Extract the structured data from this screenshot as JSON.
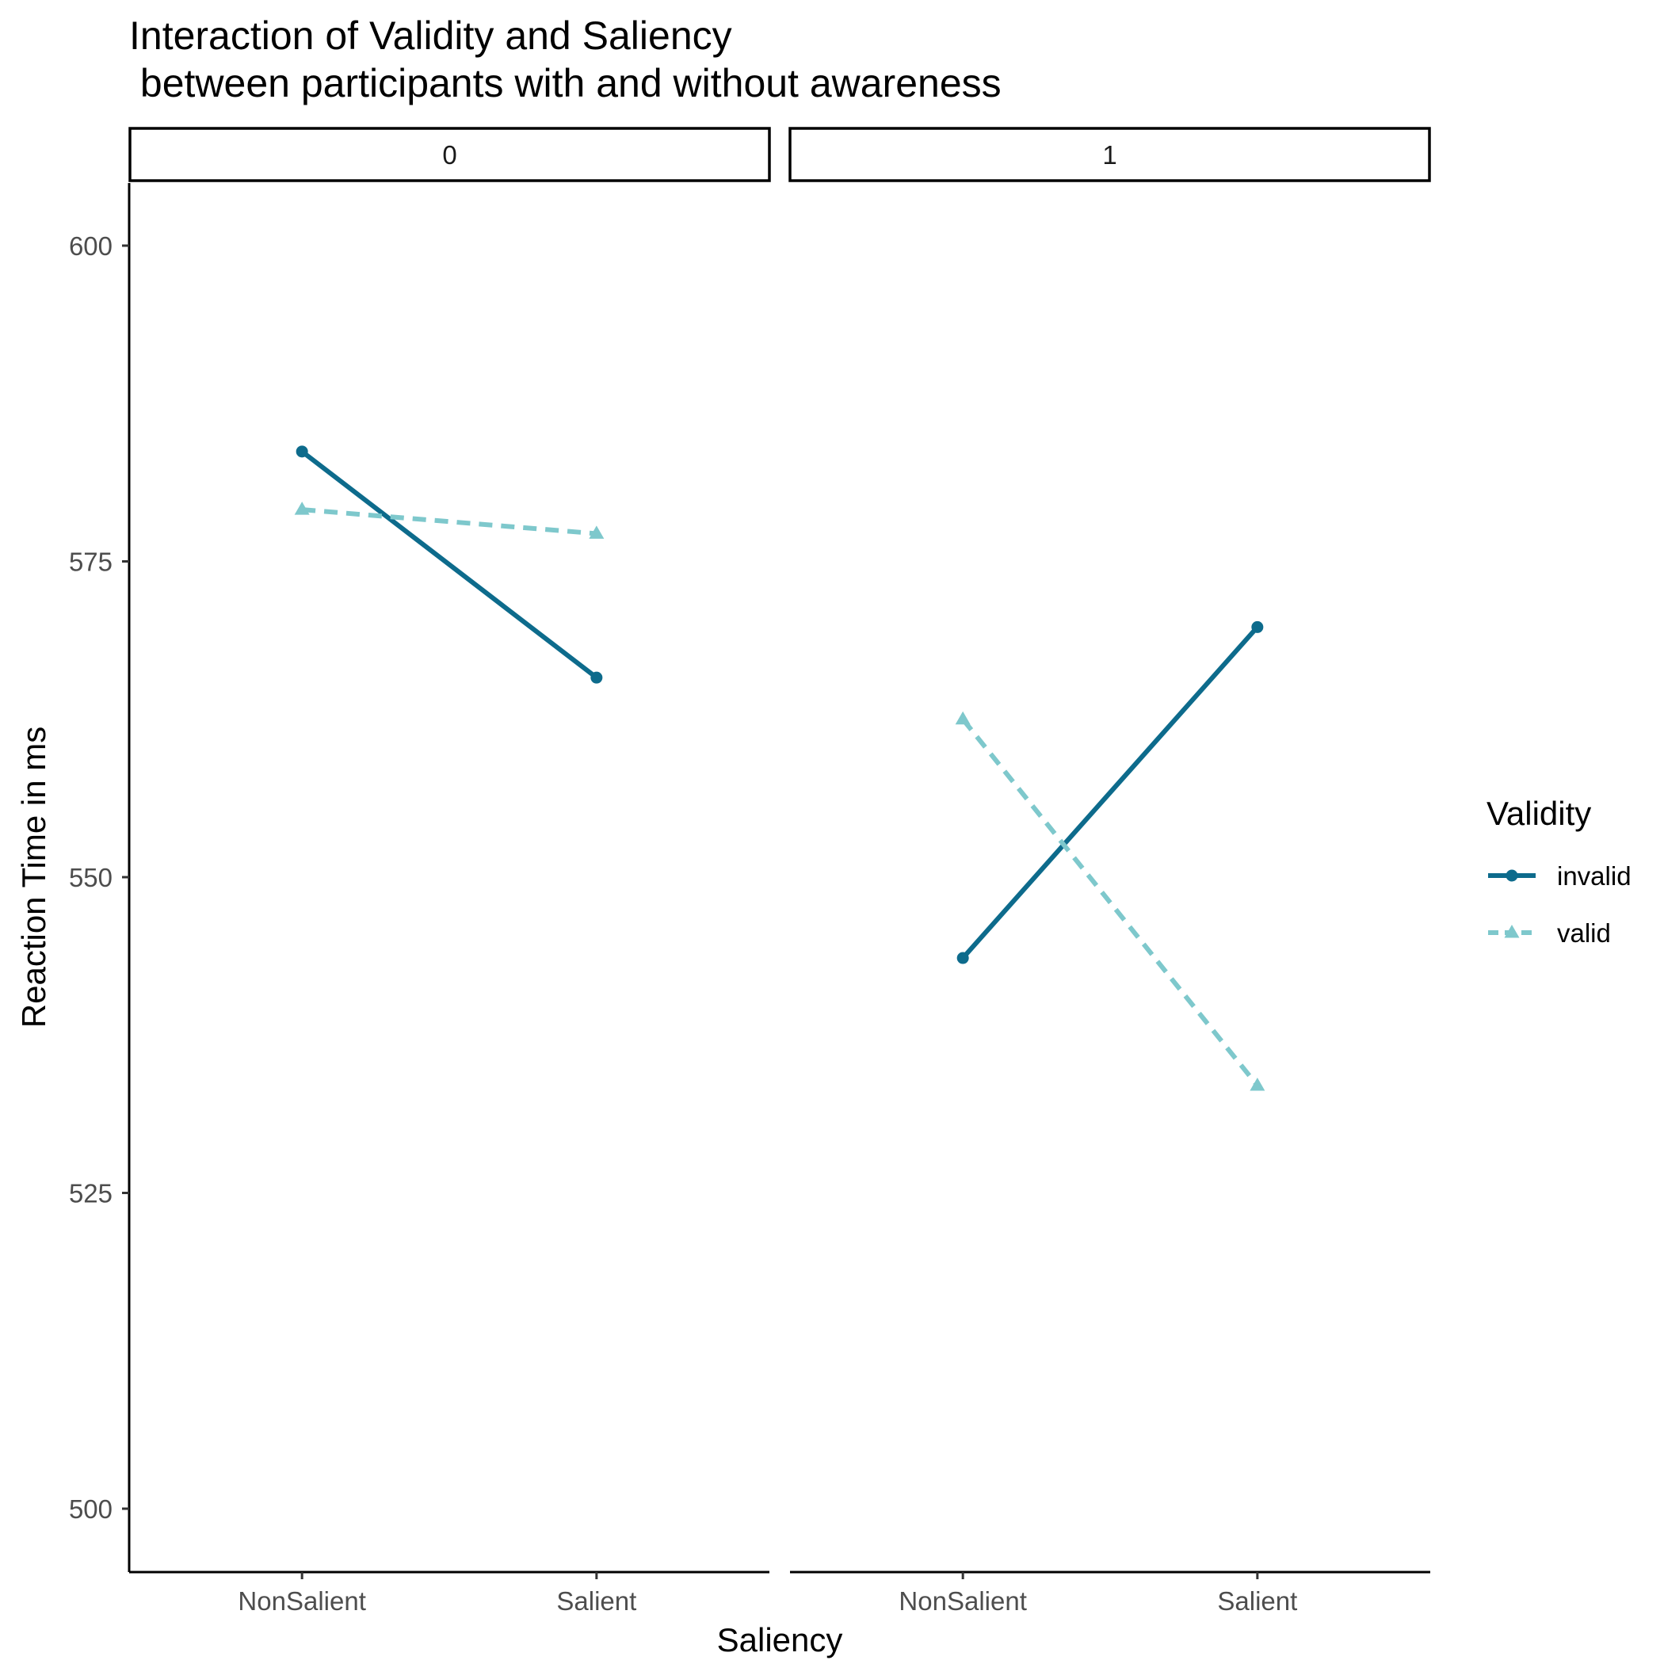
{
  "chart_data": {
    "type": "line",
    "title_lines": [
      "Interaction of Validity and Saliency",
      " between participants with and without awareness"
    ],
    "xlabel": "Saliency",
    "ylabel": "Reaction Time in ms",
    "categories": [
      "NonSalient",
      "Salient"
    ],
    "ylim": [
      495,
      605
    ],
    "yticks": [
      500,
      525,
      550,
      575,
      600
    ],
    "grid": false,
    "legend": {
      "title": "Validity",
      "placement": "right",
      "entries": [
        "invalid",
        "valid"
      ]
    },
    "panels": [
      {
        "label": "0",
        "series": [
          {
            "name": "invalid",
            "values": [
              583.7,
              565.8
            ]
          },
          {
            "name": "valid",
            "values": [
              579.1,
              577.2
            ]
          }
        ]
      },
      {
        "label": "1",
        "series": [
          {
            "name": "invalid",
            "values": [
              543.6,
              569.8
            ]
          },
          {
            "name": "valid",
            "values": [
              562.5,
              533.5
            ]
          }
        ]
      }
    ],
    "colors": {
      "invalid": "#0d6b8c",
      "valid": "#7ec8cc"
    },
    "markers": {
      "invalid": "circle",
      "valid": "triangle"
    },
    "linetypes": {
      "invalid": "solid",
      "valid": "dashed"
    }
  }
}
